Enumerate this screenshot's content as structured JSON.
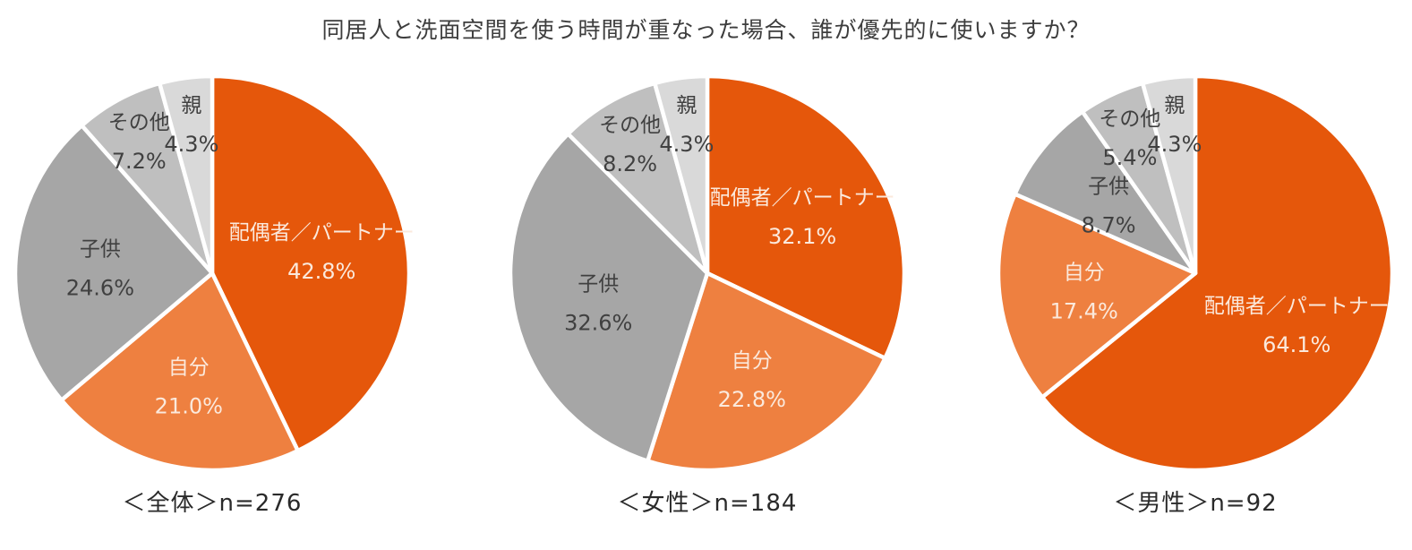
{
  "page_title": "同居人と洗面空間を使う時間が重なった場合、誰が優先的に使いますか？",
  "chart_data": [
    {
      "type": "pie",
      "group": "全体",
      "n": 276,
      "caption": "＜全体＞n=276",
      "categories": [
        "配偶者／パートナー",
        "自分",
        "子供",
        "その他",
        "親"
      ],
      "values": [
        42.8,
        21.0,
        24.6,
        7.2,
        4.3
      ],
      "value_labels": [
        "42.8%",
        "21.0%",
        "24.6%",
        "7.2%",
        "4.3%"
      ],
      "start_angle_deg": 0,
      "direction": "clockwise"
    },
    {
      "type": "pie",
      "group": "女性",
      "n": 184,
      "caption": "＜女性＞n=184",
      "categories": [
        "配偶者／パートナー",
        "自分",
        "子供",
        "その他",
        "親"
      ],
      "values": [
        32.1,
        22.8,
        32.6,
        8.2,
        4.3
      ],
      "value_labels": [
        "32.1%",
        "22.8%",
        "32.6%",
        "8.2%",
        "4.3%"
      ],
      "start_angle_deg": 0,
      "direction": "clockwise"
    },
    {
      "type": "pie",
      "group": "男性",
      "n": 92,
      "caption": "＜男性＞n=92",
      "categories": [
        "配偶者／パートナー",
        "自分",
        "子供",
        "その他",
        "親"
      ],
      "values": [
        64.1,
        17.4,
        8.7,
        5.4,
        4.3
      ],
      "value_labels": [
        "64.1%",
        "17.4%",
        "8.7%",
        "5.4%",
        "4.3%"
      ],
      "start_angle_deg": 0,
      "direction": "clockwise"
    }
  ],
  "style": {
    "slice_colors": [
      "#e5570b",
      "#ee8040",
      "#a6a6a6",
      "#bfbfbf",
      "#d9d9d9"
    ],
    "slice_label_colors": [
      "#fbe9dc",
      "#fbe9dc",
      "#404040",
      "#404040",
      "#404040"
    ],
    "slice_divider_color": "#ffffff",
    "title_color": "#3d3d3d",
    "caption_color": "#2a2a2a",
    "background": "#ffffff"
  }
}
